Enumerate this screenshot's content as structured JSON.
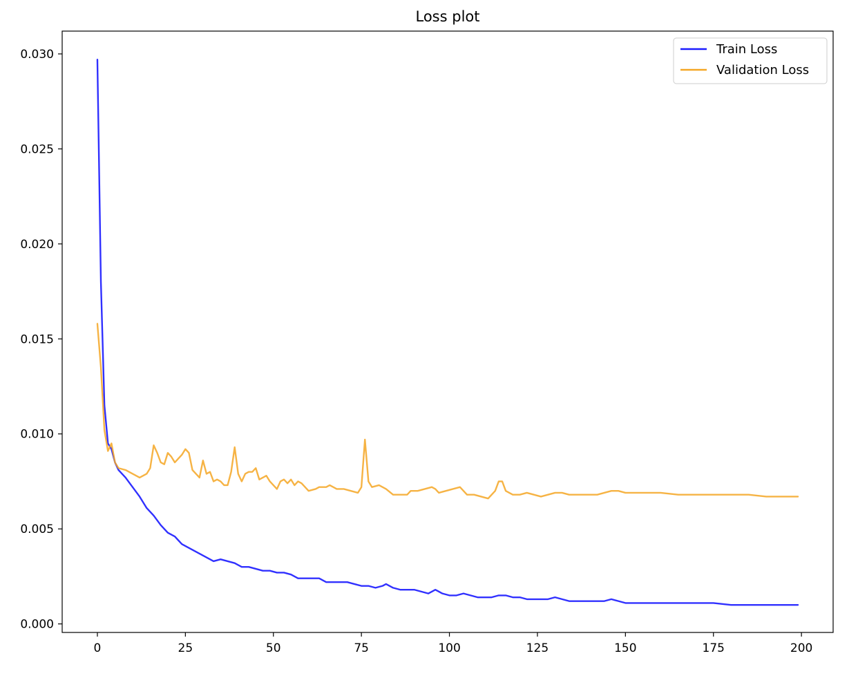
{
  "chart_data": {
    "type": "line",
    "title": "Loss plot",
    "xlabel": "",
    "ylabel": "",
    "xlim": [
      -10,
      209
    ],
    "ylim": [
      -0.00045,
      0.0312
    ],
    "x_ticks": [
      0,
      25,
      50,
      75,
      100,
      125,
      150,
      175,
      200
    ],
    "y_ticks": [
      0.0,
      0.005,
      0.01,
      0.015,
      0.02,
      0.025,
      0.03
    ],
    "y_tick_labels": [
      "0.000",
      "0.005",
      "0.010",
      "0.015",
      "0.020",
      "0.025",
      "0.030"
    ],
    "x_tick_labels": [
      "0",
      "25",
      "50",
      "75",
      "100",
      "125",
      "150",
      "175",
      "200"
    ],
    "grid": false,
    "legend_position": "top-right",
    "series": [
      {
        "name": "Train Loss",
        "color": "#1a1aff",
        "points": [
          [
            0,
            0.0297
          ],
          [
            1,
            0.018
          ],
          [
            2,
            0.0115
          ],
          [
            3,
            0.0095
          ],
          [
            4,
            0.0092
          ],
          [
            5,
            0.0085
          ],
          [
            6,
            0.0081
          ],
          [
            8,
            0.0077
          ],
          [
            10,
            0.0072
          ],
          [
            12,
            0.0067
          ],
          [
            14,
            0.0061
          ],
          [
            16,
            0.0057
          ],
          [
            18,
            0.0052
          ],
          [
            20,
            0.0048
          ],
          [
            22,
            0.0046
          ],
          [
            24,
            0.0042
          ],
          [
            26,
            0.004
          ],
          [
            28,
            0.0038
          ],
          [
            30,
            0.0036
          ],
          [
            32,
            0.0034
          ],
          [
            33,
            0.0033
          ],
          [
            35,
            0.0034
          ],
          [
            37,
            0.0033
          ],
          [
            39,
            0.0032
          ],
          [
            41,
            0.003
          ],
          [
            43,
            0.003
          ],
          [
            45,
            0.0029
          ],
          [
            47,
            0.0028
          ],
          [
            49,
            0.0028
          ],
          [
            51,
            0.0027
          ],
          [
            53,
            0.0027
          ],
          [
            55,
            0.0026
          ],
          [
            57,
            0.0024
          ],
          [
            59,
            0.0024
          ],
          [
            61,
            0.0024
          ],
          [
            63,
            0.0024
          ],
          [
            65,
            0.0022
          ],
          [
            67,
            0.0022
          ],
          [
            69,
            0.0022
          ],
          [
            71,
            0.0022
          ],
          [
            73,
            0.0021
          ],
          [
            75,
            0.002
          ],
          [
            77,
            0.002
          ],
          [
            79,
            0.0019
          ],
          [
            81,
            0.002
          ],
          [
            82,
            0.0021
          ],
          [
            84,
            0.0019
          ],
          [
            86,
            0.0018
          ],
          [
            88,
            0.0018
          ],
          [
            90,
            0.0018
          ],
          [
            92,
            0.0017
          ],
          [
            94,
            0.0016
          ],
          [
            96,
            0.0018
          ],
          [
            98,
            0.0016
          ],
          [
            100,
            0.0015
          ],
          [
            102,
            0.0015
          ],
          [
            104,
            0.0016
          ],
          [
            106,
            0.0015
          ],
          [
            108,
            0.0014
          ],
          [
            110,
            0.0014
          ],
          [
            112,
            0.0014
          ],
          [
            114,
            0.0015
          ],
          [
            116,
            0.0015
          ],
          [
            118,
            0.0014
          ],
          [
            120,
            0.0014
          ],
          [
            122,
            0.0013
          ],
          [
            124,
            0.0013
          ],
          [
            126,
            0.0013
          ],
          [
            128,
            0.0013
          ],
          [
            130,
            0.0014
          ],
          [
            132,
            0.0013
          ],
          [
            134,
            0.0012
          ],
          [
            136,
            0.0012
          ],
          [
            138,
            0.0012
          ],
          [
            140,
            0.0012
          ],
          [
            142,
            0.0012
          ],
          [
            144,
            0.0012
          ],
          [
            146,
            0.0013
          ],
          [
            148,
            0.0012
          ],
          [
            150,
            0.0011
          ],
          [
            155,
            0.0011
          ],
          [
            160,
            0.0011
          ],
          [
            165,
            0.0011
          ],
          [
            170,
            0.0011
          ],
          [
            175,
            0.0011
          ],
          [
            180,
            0.001
          ],
          [
            185,
            0.001
          ],
          [
            190,
            0.001
          ],
          [
            195,
            0.001
          ],
          [
            199,
            0.001
          ]
        ]
      },
      {
        "name": "Validation Loss",
        "color": "#f5a623",
        "points": [
          [
            0,
            0.0158
          ],
          [
            1,
            0.0135
          ],
          [
            2,
            0.0102
          ],
          [
            3,
            0.0091
          ],
          [
            4,
            0.0095
          ],
          [
            5,
            0.0085
          ],
          [
            6,
            0.0082
          ],
          [
            8,
            0.0081
          ],
          [
            10,
            0.0079
          ],
          [
            12,
            0.0077
          ],
          [
            14,
            0.0079
          ],
          [
            15,
            0.0082
          ],
          [
            16,
            0.0094
          ],
          [
            17,
            0.009
          ],
          [
            18,
            0.0085
          ],
          [
            19,
            0.0084
          ],
          [
            20,
            0.009
          ],
          [
            21,
            0.0088
          ],
          [
            22,
            0.0085
          ],
          [
            23,
            0.0087
          ],
          [
            24,
            0.0089
          ],
          [
            25,
            0.0092
          ],
          [
            26,
            0.009
          ],
          [
            27,
            0.0081
          ],
          [
            28,
            0.0079
          ],
          [
            29,
            0.0077
          ],
          [
            30,
            0.0086
          ],
          [
            31,
            0.0079
          ],
          [
            32,
            0.008
          ],
          [
            33,
            0.0075
          ],
          [
            34,
            0.0076
          ],
          [
            35,
            0.0075
          ],
          [
            36,
            0.0073
          ],
          [
            37,
            0.0073
          ],
          [
            38,
            0.008
          ],
          [
            39,
            0.0093
          ],
          [
            40,
            0.0079
          ],
          [
            41,
            0.0075
          ],
          [
            42,
            0.0079
          ],
          [
            43,
            0.008
          ],
          [
            44,
            0.008
          ],
          [
            45,
            0.0082
          ],
          [
            46,
            0.0076
          ],
          [
            47,
            0.0077
          ],
          [
            48,
            0.0078
          ],
          [
            49,
            0.0075
          ],
          [
            50,
            0.0073
          ],
          [
            51,
            0.0071
          ],
          [
            52,
            0.0075
          ],
          [
            53,
            0.0076
          ],
          [
            54,
            0.0074
          ],
          [
            55,
            0.0076
          ],
          [
            56,
            0.0073
          ],
          [
            57,
            0.0075
          ],
          [
            58,
            0.0074
          ],
          [
            59,
            0.0072
          ],
          [
            60,
            0.007
          ],
          [
            62,
            0.0071
          ],
          [
            63,
            0.0072
          ],
          [
            65,
            0.0072
          ],
          [
            66,
            0.0073
          ],
          [
            68,
            0.0071
          ],
          [
            70,
            0.0071
          ],
          [
            72,
            0.007
          ],
          [
            74,
            0.0069
          ],
          [
            75,
            0.0072
          ],
          [
            76,
            0.0097
          ],
          [
            77,
            0.0075
          ],
          [
            78,
            0.0072
          ],
          [
            80,
            0.0073
          ],
          [
            82,
            0.0071
          ],
          [
            84,
            0.0068
          ],
          [
            86,
            0.0068
          ],
          [
            88,
            0.0068
          ],
          [
            89,
            0.007
          ],
          [
            91,
            0.007
          ],
          [
            93,
            0.0071
          ],
          [
            95,
            0.0072
          ],
          [
            96,
            0.0071
          ],
          [
            97,
            0.0069
          ],
          [
            99,
            0.007
          ],
          [
            101,
            0.0071
          ],
          [
            103,
            0.0072
          ],
          [
            105,
            0.0068
          ],
          [
            107,
            0.0068
          ],
          [
            109,
            0.0067
          ],
          [
            111,
            0.0066
          ],
          [
            113,
            0.007
          ],
          [
            114,
            0.0075
          ],
          [
            115,
            0.0075
          ],
          [
            116,
            0.007
          ],
          [
            118,
            0.0068
          ],
          [
            120,
            0.0068
          ],
          [
            122,
            0.0069
          ],
          [
            124,
            0.0068
          ],
          [
            126,
            0.0067
          ],
          [
            128,
            0.0068
          ],
          [
            130,
            0.0069
          ],
          [
            132,
            0.0069
          ],
          [
            134,
            0.0068
          ],
          [
            136,
            0.0068
          ],
          [
            138,
            0.0068
          ],
          [
            140,
            0.0068
          ],
          [
            142,
            0.0068
          ],
          [
            144,
            0.0069
          ],
          [
            146,
            0.007
          ],
          [
            148,
            0.007
          ],
          [
            150,
            0.0069
          ],
          [
            155,
            0.0069
          ],
          [
            160,
            0.0069
          ],
          [
            165,
            0.0068
          ],
          [
            170,
            0.0068
          ],
          [
            175,
            0.0068
          ],
          [
            180,
            0.0068
          ],
          [
            185,
            0.0068
          ],
          [
            190,
            0.0067
          ],
          [
            195,
            0.0067
          ],
          [
            199,
            0.0067
          ]
        ]
      }
    ]
  }
}
